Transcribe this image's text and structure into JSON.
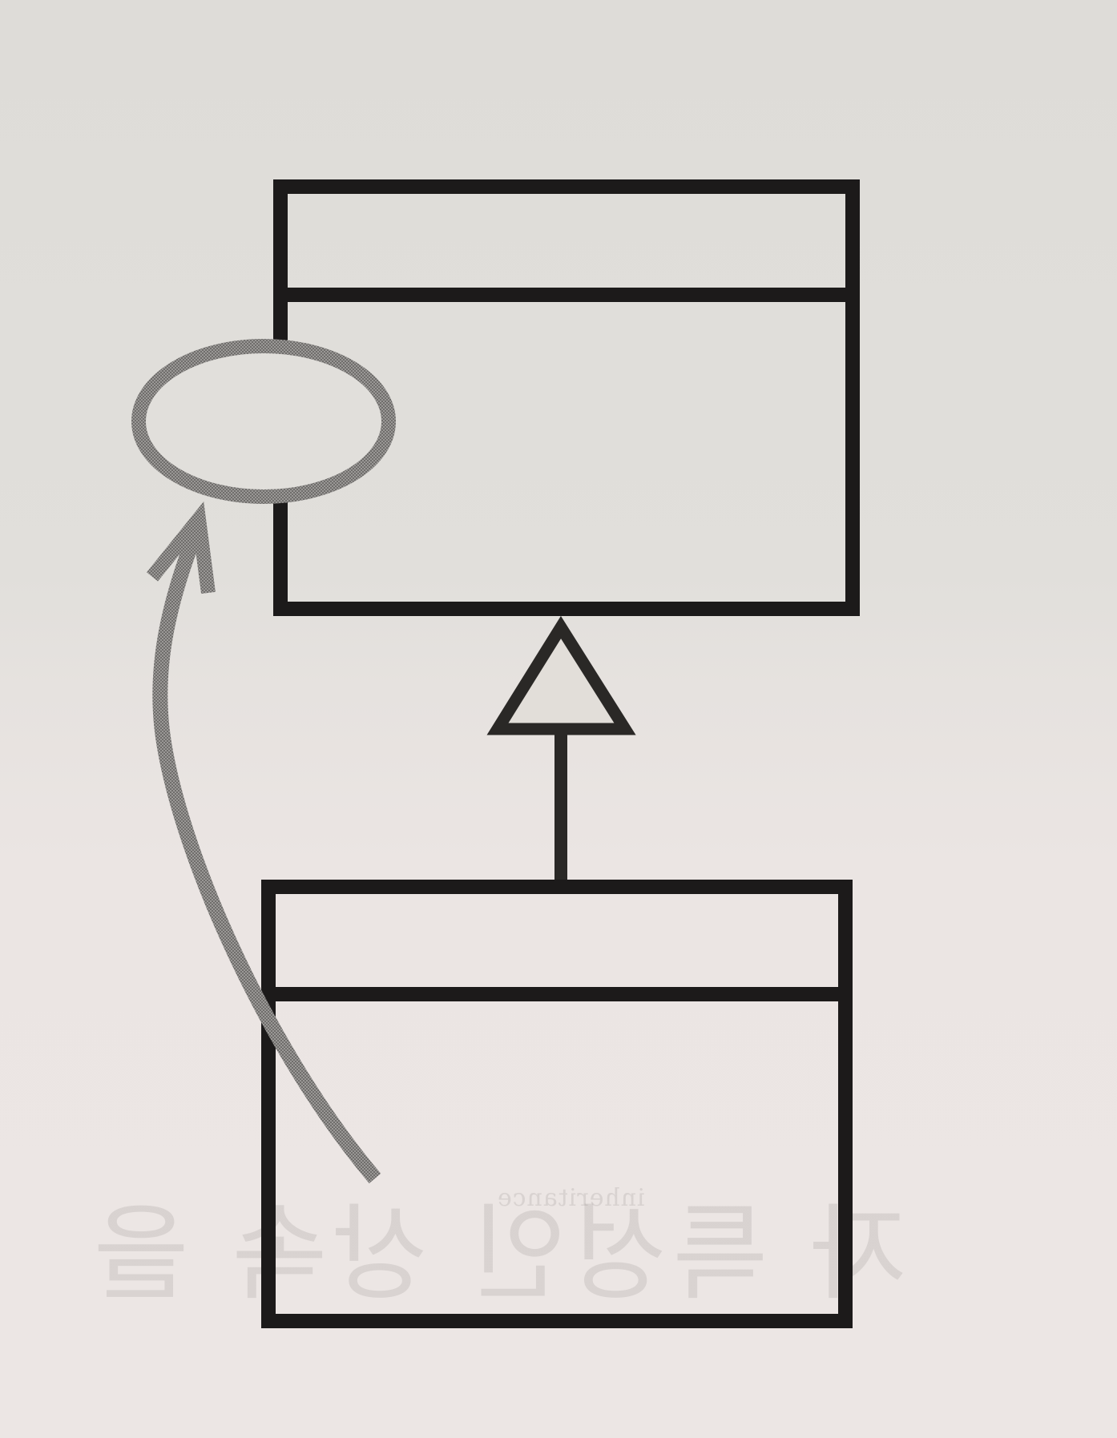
{
  "diagram": {
    "kind": "UML class inheritance diagram (unlabeled)",
    "show_through_text": {
      "large": "자 특성인 상속 을",
      "small": "inheritance"
    },
    "colors": {
      "background_top": "#dedcd8",
      "background_bottom": "#ece6e4",
      "ink": "#1c1a1a",
      "gray_stroke": "#8c8a88",
      "ghost_text": "#786e6e"
    }
  }
}
